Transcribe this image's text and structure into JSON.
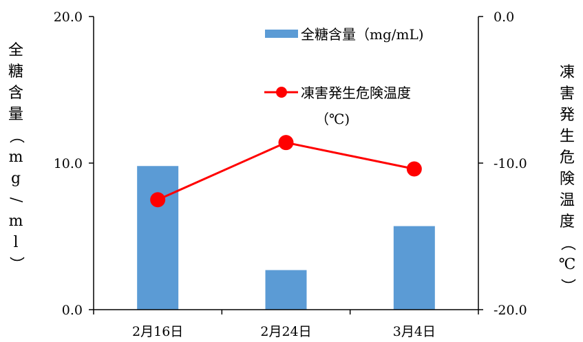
{
  "chart_data": {
    "type": "bar+line",
    "categories": [
      "2月16日",
      "2月24日",
      "3月4日"
    ],
    "series": [
      {
        "name": "全糖含量（mg/mL)",
        "type": "bar",
        "axis": "left",
        "color": "#5b9bd5",
        "values": [
          9.8,
          2.7,
          5.7
        ]
      },
      {
        "name": "凍害発生危険温度（℃)",
        "type": "line",
        "axis": "right",
        "color": "#ff0000",
        "values": [
          -12.5,
          -8.6,
          -10.4
        ]
      }
    ],
    "y_left": {
      "label": "全糖含量（mg/ml）",
      "range": [
        0,
        20
      ],
      "ticks": [
        "0.0",
        "10.0",
        "20.0"
      ]
    },
    "y_right": {
      "label": "凍害発生危険温度（℃）",
      "range": [
        -20,
        0
      ],
      "ticks": [
        "-20.0",
        "-10.0",
        "0.0"
      ],
      "inverted": true
    },
    "legend": {
      "placement": "top-right",
      "bar_label": "全糖含量（mg/mL)",
      "line_label": "凍害発生危険温度",
      "line_label_cont": "（℃)"
    }
  }
}
